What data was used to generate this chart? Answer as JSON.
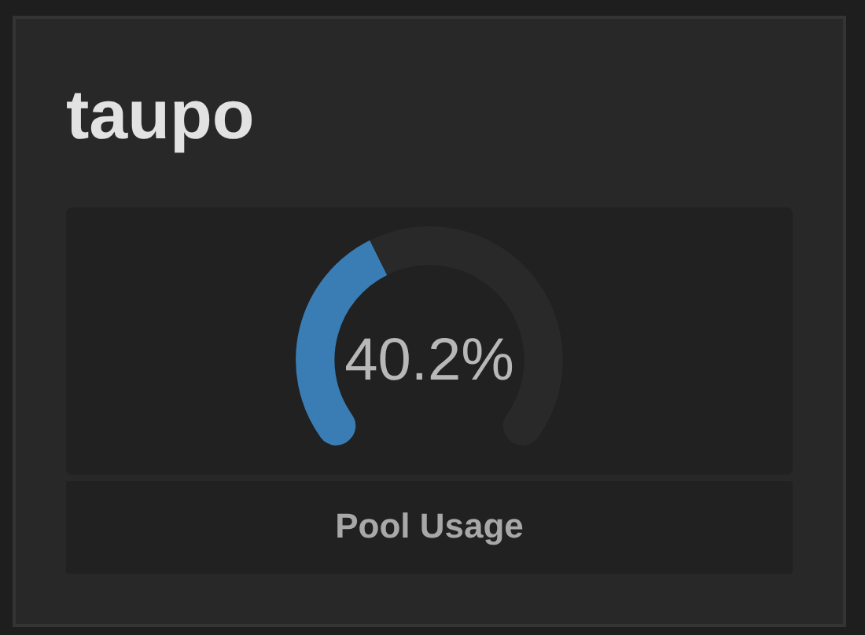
{
  "chart_data": {
    "type": "donut",
    "title": "taupo",
    "xlabel": "Pool Usage",
    "categories": [
      null,
      null
    ],
    "values": [
      40.2,
      59.8
    ],
    "colors": [
      "#3a7db5",
      "#292929"
    ],
    "annotations": [
      "40.2%"
    ]
  }
}
